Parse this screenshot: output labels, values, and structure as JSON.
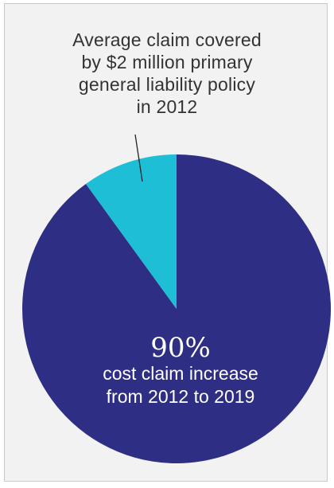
{
  "chart_data": {
    "type": "pie",
    "slices": [
      {
        "label": "cost claim increase from 2012 to 2019",
        "value": 90,
        "color": "#2e2e84"
      },
      {
        "label": "Average claim covered by $2 million primary general liability policy in 2012",
        "value": 10,
        "color": "#1ebed6"
      }
    ],
    "annotation_lines": [
      "Average claim covered",
      "by $2 million primary",
      "general liability policy",
      "in 2012"
    ],
    "center_value": "90%",
    "center_label_lines": [
      "cost claim increase",
      "from 2012 to 2019"
    ]
  }
}
